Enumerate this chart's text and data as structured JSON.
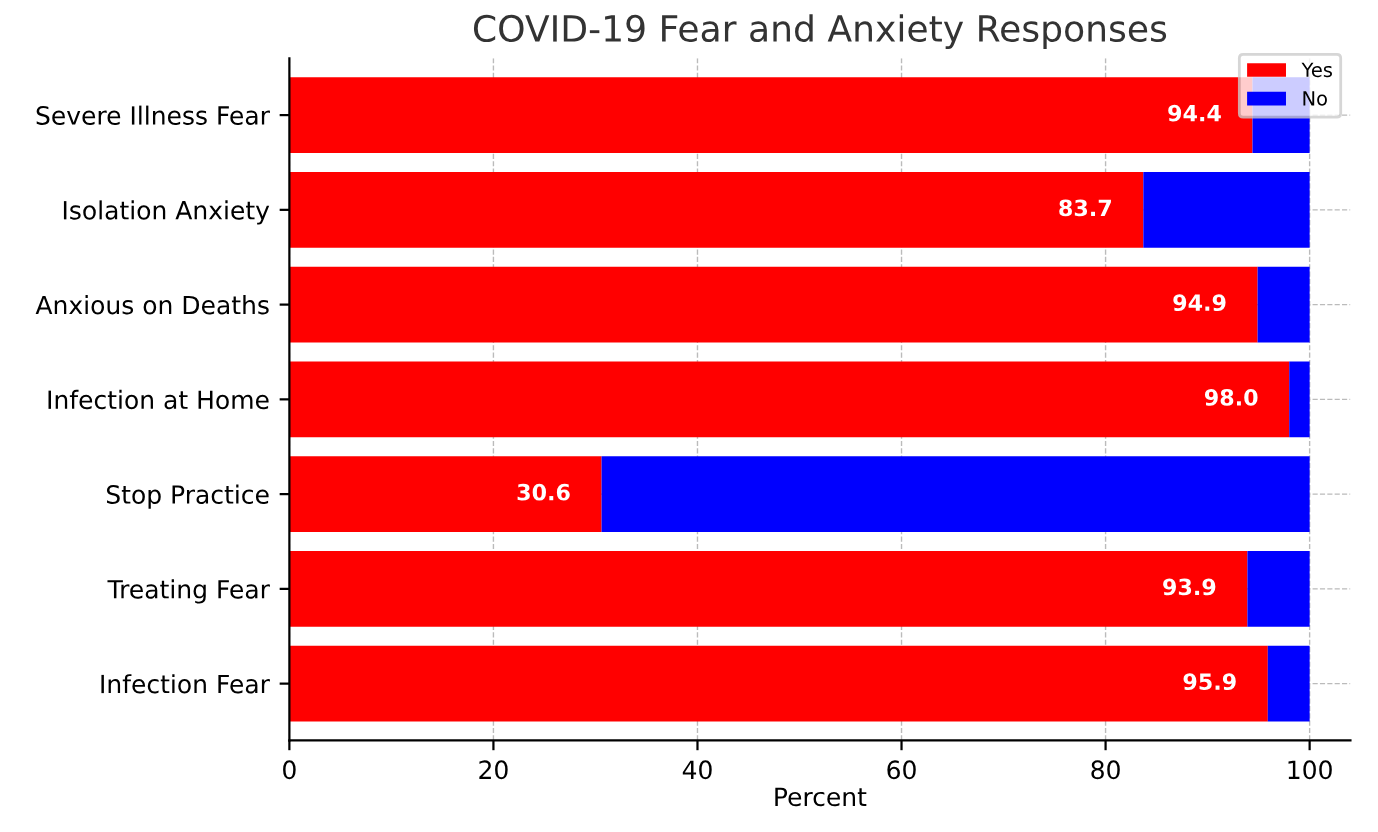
{
  "chart_data": {
    "type": "bar",
    "orientation": "horizontal",
    "stacked": true,
    "title": "COVID-19 Fear and Anxiety Responses",
    "xlabel": "Percent",
    "categories": [
      "Severe Illness Fear",
      "Isolation Anxiety",
      "Anxious on Deaths",
      "Infection at Home",
      "Stop Practice",
      "Treating Fear",
      "Infection Fear"
    ],
    "series": [
      {
        "name": "Yes",
        "color": "#ff0000",
        "values": [
          94.4,
          83.7,
          94.9,
          98.0,
          30.6,
          93.9,
          95.9
        ],
        "value_labels": [
          "94.4",
          "83.7",
          "94.9",
          "98.0",
          "30.6",
          "93.9",
          "95.9"
        ]
      },
      {
        "name": "No",
        "color": "#0000ff",
        "values": [
          5.6,
          16.3,
          5.1,
          2.0,
          69.4,
          6.1,
          4.1
        ]
      }
    ],
    "xlim": [
      0,
      104
    ],
    "xticks": [
      0,
      20,
      40,
      60,
      80,
      100
    ],
    "grid": true,
    "legend": "top right"
  }
}
